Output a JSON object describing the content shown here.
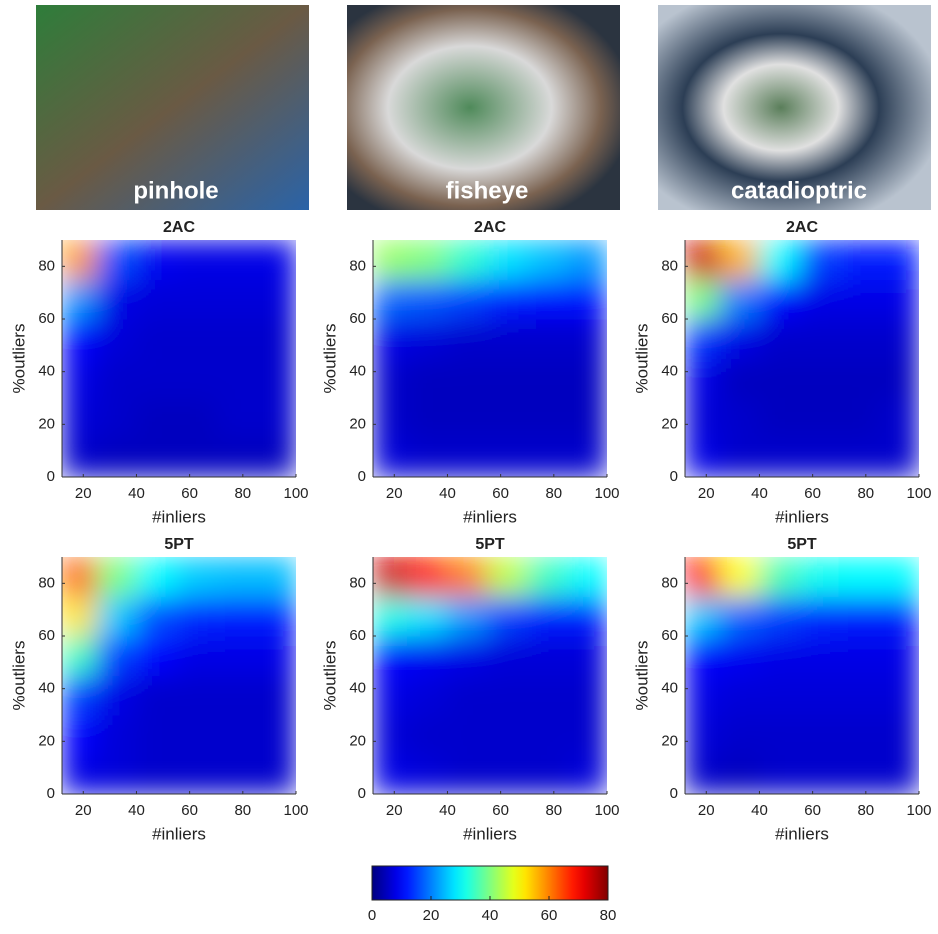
{
  "images": [
    "pinhole",
    "fisheye",
    "catadioptric"
  ],
  "colorbar": {
    "zlim": [
      0,
      80
    ],
    "zticks": [
      0,
      20,
      40,
      60,
      80
    ]
  },
  "chart_data": [
    {
      "type": "heatmap",
      "title": "2AC",
      "xlabel": "#inliers",
      "ylabel": "%outliers",
      "xlim": [
        12,
        100
      ],
      "ylim": [
        0,
        90
      ],
      "xticks": [
        20,
        40,
        60,
        80,
        100
      ],
      "yticks": [
        0,
        20,
        40,
        60,
        80
      ],
      "x_edges": [
        12,
        25,
        40,
        55,
        70,
        85,
        100
      ],
      "y_edges": [
        0,
        15,
        30,
        45,
        60,
        75,
        90
      ],
      "values": [
        [
          6,
          5,
          5,
          5,
          5,
          5
        ],
        [
          7,
          6,
          5,
          5,
          6,
          6
        ],
        [
          8,
          6,
          6,
          6,
          6,
          6
        ],
        [
          10,
          7,
          6,
          6,
          6,
          6
        ],
        [
          22,
          8,
          7,
          7,
          7,
          7
        ],
        [
          58,
          16,
          9,
          8,
          8,
          8
        ]
      ]
    },
    {
      "type": "heatmap",
      "title": "2AC",
      "xlabel": "#inliers",
      "ylabel": "%outliers",
      "xlim": [
        12,
        100
      ],
      "ylim": [
        0,
        90
      ],
      "xticks": [
        20,
        40,
        60,
        80,
        100
      ],
      "yticks": [
        0,
        20,
        40,
        60,
        80
      ],
      "x_edges": [
        12,
        25,
        40,
        55,
        70,
        85,
        100
      ],
      "y_edges": [
        0,
        15,
        30,
        45,
        60,
        75,
        90
      ],
      "values": [
        [
          7,
          6,
          6,
          6,
          6,
          6
        ],
        [
          6,
          5,
          5,
          5,
          5,
          5
        ],
        [
          6,
          5,
          5,
          5,
          5,
          5
        ],
        [
          8,
          7,
          6,
          6,
          6,
          6
        ],
        [
          18,
          17,
          15,
          12,
          11,
          11
        ],
        [
          42,
          40,
          34,
          28,
          25,
          22
        ]
      ]
    },
    {
      "type": "heatmap",
      "title": "2AC",
      "xlabel": "#inliers",
      "ylabel": "%outliers",
      "xlim": [
        12,
        100
      ],
      "ylim": [
        0,
        90
      ],
      "xticks": [
        20,
        40,
        60,
        80,
        100
      ],
      "yticks": [
        0,
        20,
        40,
        60,
        80
      ],
      "x_edges": [
        12,
        25,
        40,
        55,
        70,
        85,
        100
      ],
      "y_edges": [
        0,
        15,
        30,
        45,
        60,
        75,
        90
      ],
      "values": [
        [
          8,
          6,
          6,
          6,
          6,
          6
        ],
        [
          7,
          6,
          5,
          5,
          5,
          6
        ],
        [
          8,
          5,
          5,
          5,
          5,
          5
        ],
        [
          14,
          8,
          6,
          6,
          6,
          6
        ],
        [
          40,
          20,
          10,
          8,
          8,
          8
        ],
        [
          74,
          56,
          30,
          15,
          12,
          12
        ]
      ]
    },
    {
      "type": "heatmap",
      "title": "5PT",
      "xlabel": "#inliers",
      "ylabel": "%outliers",
      "xlim": [
        12,
        100
      ],
      "ylim": [
        0,
        90
      ],
      "xticks": [
        20,
        40,
        60,
        80,
        100
      ],
      "yticks": [
        0,
        20,
        40,
        60,
        80
      ],
      "x_edges": [
        12,
        25,
        40,
        55,
        70,
        85,
        100
      ],
      "y_edges": [
        0,
        15,
        30,
        45,
        60,
        75,
        90
      ],
      "values": [
        [
          8,
          7,
          6,
          6,
          6,
          6
        ],
        [
          10,
          7,
          6,
          6,
          6,
          6
        ],
        [
          15,
          8,
          6,
          6,
          6,
          6
        ],
        [
          35,
          15,
          10,
          8,
          8,
          8
        ],
        [
          52,
          26,
          16,
          13,
          12,
          12
        ],
        [
          62,
          40,
          30,
          26,
          25,
          25
        ]
      ]
    },
    {
      "type": "heatmap",
      "title": "5PT",
      "xlabel": "#inliers",
      "ylabel": "%outliers",
      "xlim": [
        12,
        100
      ],
      "ylim": [
        0,
        90
      ],
      "xticks": [
        20,
        40,
        60,
        80,
        100
      ],
      "yticks": [
        0,
        20,
        40,
        60,
        80
      ],
      "x_edges": [
        12,
        25,
        40,
        55,
        70,
        85,
        100
      ],
      "y_edges": [
        0,
        15,
        30,
        45,
        60,
        75,
        90
      ],
      "values": [
        [
          8,
          7,
          6,
          6,
          6,
          7
        ],
        [
          7,
          6,
          6,
          6,
          6,
          6
        ],
        [
          8,
          7,
          6,
          6,
          6,
          6
        ],
        [
          10,
          9,
          8,
          7,
          7,
          7
        ],
        [
          32,
          28,
          22,
          15,
          12,
          12
        ],
        [
          74,
          68,
          60,
          45,
          35,
          30
        ]
      ]
    },
    {
      "type": "heatmap",
      "title": "5PT",
      "xlabel": "#inliers",
      "ylabel": "%outliers",
      "xlim": [
        12,
        100
      ],
      "ylim": [
        0,
        90
      ],
      "xticks": [
        20,
        40,
        60,
        80,
        100
      ],
      "yticks": [
        0,
        20,
        40,
        60,
        80
      ],
      "x_edges": [
        12,
        25,
        40,
        55,
        70,
        85,
        100
      ],
      "y_edges": [
        0,
        15,
        30,
        45,
        60,
        75,
        90
      ],
      "values": [
        [
          6,
          5,
          6,
          6,
          6,
          6
        ],
        [
          7,
          6,
          6,
          6,
          6,
          6
        ],
        [
          8,
          7,
          7,
          7,
          7,
          7
        ],
        [
          10,
          9,
          8,
          8,
          8,
          8
        ],
        [
          26,
          18,
          15,
          13,
          12,
          12
        ],
        [
          70,
          50,
          36,
          31,
          30,
          30
        ]
      ]
    }
  ]
}
